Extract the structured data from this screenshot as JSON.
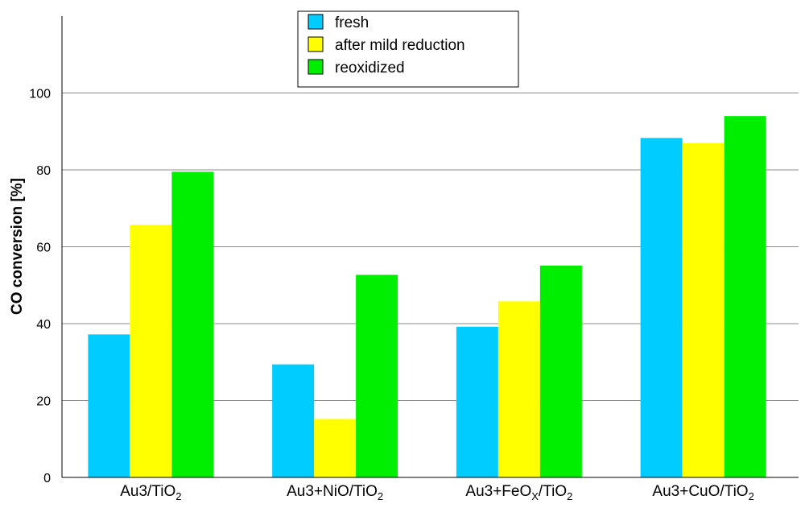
{
  "chart_data": {
    "type": "bar",
    "title": "",
    "xlabel": "",
    "ylabel": "CO conversion [%]",
    "ylim": [
      0,
      120
    ],
    "yticks": [
      0,
      20,
      40,
      60,
      80,
      100
    ],
    "grid": true,
    "legend_position": "top-center",
    "categories": [
      {
        "main": "Au3/TiO",
        "sub": "2",
        "label": "Au3/TiO2"
      },
      {
        "main": "Au3+NiO/TiO",
        "sub": "2",
        "label": "Au3+NiO/TiO2"
      },
      {
        "main": "Au3+FeO",
        "sub": "X",
        "main2": "/TiO",
        "sub2": "2",
        "label": "Au3+FeOX/TiO2"
      },
      {
        "main": "Au3+CuO/TiO",
        "sub": "2",
        "label": "Au3+CuO/TiO2"
      }
    ],
    "series": [
      {
        "name": "fresh",
        "color": "#00ccff",
        "values": [
          37.2,
          29.4,
          39.2,
          88.3
        ]
      },
      {
        "name": "after mild reduction",
        "color": "#ffff00",
        "values": [
          65.7,
          15.2,
          45.8,
          87.0
        ]
      },
      {
        "name": "reoxidized",
        "color": "#00ee00",
        "values": [
          79.5,
          52.7,
          55.1,
          94.0
        ]
      }
    ]
  }
}
